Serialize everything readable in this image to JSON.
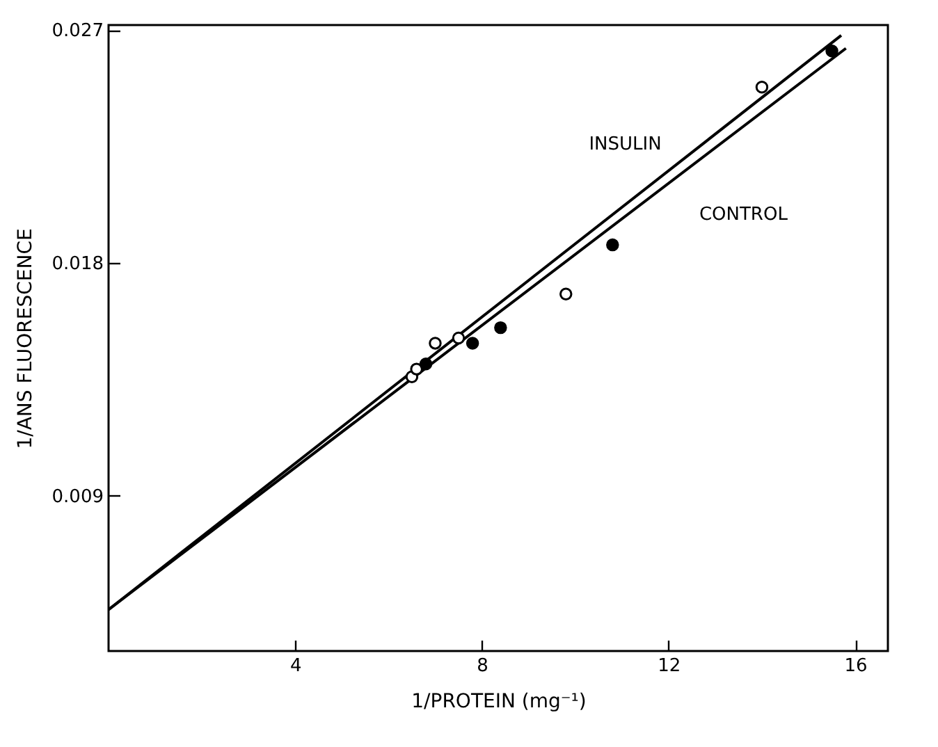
{
  "chart_data": {
    "type": "scatter",
    "xlabel": "1/PROTEIN (mg⁻¹)",
    "ylabel": "1/ANS FLUORESCENCE",
    "xlim": [
      0,
      16.7
    ],
    "ylim": [
      0.003,
      0.0272
    ],
    "xticks": [
      4,
      8,
      12,
      16
    ],
    "yticks": [
      0.009,
      0.018,
      0.027
    ],
    "marker": "circle",
    "series": [
      {
        "type": "line",
        "marker": "none",
        "color": "#000000",
        "x": [
          0,
          15.7
        ],
        "values": [
          0.0046,
          0.0268
        ]
      },
      {
        "type": "line",
        "marker": "none",
        "color": "#000000",
        "x": [
          0,
          15.8
        ],
        "values": [
          0.0046,
          0.0263
        ]
      },
      {
        "color": "#ffffff",
        "x": [
          6.5,
          6.6,
          7.0,
          7.5,
          9.8,
          14.0
        ],
        "values": [
          0.0136,
          0.0139,
          0.0149,
          0.0151,
          0.0168,
          0.0248
        ]
      },
      {
        "color": "#000000",
        "x": [
          6.8,
          7.8,
          8.4,
          10.8,
          15.5
        ],
        "values": [
          0.0141,
          0.0149,
          0.0155,
          0.0187,
          0.0262
        ]
      }
    ],
    "annotations": [
      {
        "text": "INSULIN",
        "x": 11.7,
        "y": 0.0211
      },
      {
        "text": "CONTROL",
        "x": 12.3,
        "y": 0.0215
      }
    ]
  }
}
